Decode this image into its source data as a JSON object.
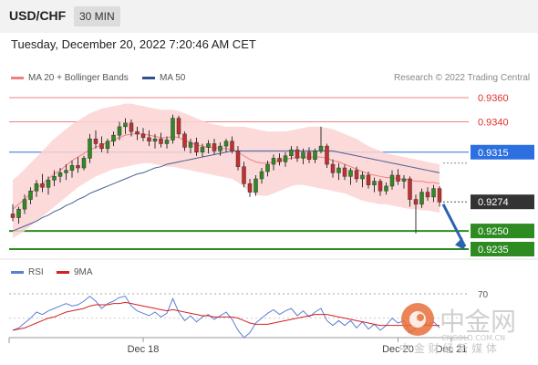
{
  "header": {
    "symbol": "USD/CHF",
    "timeframe": "30 MIN"
  },
  "timestamp": "Tuesday, December 20, 2022 7:20:46 AM CET",
  "legend": [
    {
      "label": "MA 20 + Bollinger Bands",
      "color": "#f08080"
    },
    {
      "label": "MA 50",
      "color": "#2f4f8f"
    }
  ],
  "source": "Research © 2022 Trading Central",
  "rsi_legend": [
    {
      "label": "RSI",
      "color": "#5b7fd6"
    },
    {
      "label": "9MA",
      "color": "#d62020"
    }
  ],
  "watermark": {
    "brand": "中金网",
    "site": "CNGOLD.COM.CN",
    "tagline": "中 金 财 经 新 媒 体"
  },
  "chart_data": {
    "type": "candlestick",
    "ylim": [
      0.922,
      0.937
    ],
    "levels": [
      {
        "value": 0.936,
        "label": "0.9360",
        "kind": "resistance",
        "color": "#f08080"
      },
      {
        "value": 0.934,
        "label": "0.9340",
        "kind": "resistance",
        "color": "#f08080"
      },
      {
        "value": 0.9315,
        "label": "0.9315",
        "kind": "pivot",
        "color": "#2b6fe0"
      },
      {
        "value": 0.9274,
        "label": "0.9274",
        "kind": "last",
        "color": "#333333"
      },
      {
        "value": 0.925,
        "label": "0.9250",
        "kind": "target",
        "color": "#2e8b22"
      },
      {
        "value": 0.9235,
        "label": "0.9235",
        "kind": "target",
        "color": "#2e8b22"
      }
    ],
    "x_labels": [
      "Dec 18",
      "Dec 20",
      "Dec 21"
    ],
    "x_label_index": [
      22,
      65,
      74
    ],
    "candles": [
      [
        0.9264,
        0.9272,
        0.9258,
        0.9261
      ],
      [
        0.9261,
        0.927,
        0.9256,
        0.9268
      ],
      [
        0.9268,
        0.928,
        0.9264,
        0.9276
      ],
      [
        0.9276,
        0.9286,
        0.9272,
        0.9283
      ],
      [
        0.9283,
        0.9292,
        0.9278,
        0.9289
      ],
      [
        0.9289,
        0.9297,
        0.9282,
        0.9286
      ],
      [
        0.9286,
        0.9295,
        0.928,
        0.9292
      ],
      [
        0.9292,
        0.93,
        0.9287,
        0.9295
      ],
      [
        0.9295,
        0.9302,
        0.929,
        0.9298
      ],
      [
        0.9298,
        0.9305,
        0.9292,
        0.93
      ],
      [
        0.93,
        0.9308,
        0.9294,
        0.9304
      ],
      [
        0.9304,
        0.9311,
        0.9298,
        0.9302
      ],
      [
        0.9302,
        0.9312,
        0.93,
        0.931
      ],
      [
        0.931,
        0.933,
        0.9306,
        0.9326
      ],
      [
        0.9326,
        0.9333,
        0.9318,
        0.9322
      ],
      [
        0.9322,
        0.9328,
        0.9315,
        0.9318
      ],
      [
        0.9318,
        0.9326,
        0.9314,
        0.9324
      ],
      [
        0.9324,
        0.9332,
        0.932,
        0.9329
      ],
      [
        0.9329,
        0.934,
        0.9325,
        0.9336
      ],
      [
        0.9336,
        0.9343,
        0.933,
        0.9339
      ],
      [
        0.9339,
        0.9342,
        0.9328,
        0.9332
      ],
      [
        0.9332,
        0.9336,
        0.9325,
        0.933
      ],
      [
        0.933,
        0.9335,
        0.9324,
        0.9327
      ],
      [
        0.9327,
        0.9333,
        0.932,
        0.9324
      ],
      [
        0.9324,
        0.933,
        0.9318,
        0.9326
      ],
      [
        0.9326,
        0.9331,
        0.9319,
        0.9322
      ],
      [
        0.9322,
        0.9328,
        0.9318,
        0.9325
      ],
      [
        0.9325,
        0.9346,
        0.9322,
        0.9343
      ],
      [
        0.9343,
        0.9345,
        0.9327,
        0.933
      ],
      [
        0.933,
        0.9332,
        0.9316,
        0.9319
      ],
      [
        0.9319,
        0.9326,
        0.9314,
        0.9323
      ],
      [
        0.9323,
        0.9327,
        0.9312,
        0.9315
      ],
      [
        0.9315,
        0.9322,
        0.9311,
        0.9319
      ],
      [
        0.9319,
        0.9325,
        0.9314,
        0.9322
      ],
      [
        0.9322,
        0.9326,
        0.9313,
        0.9316
      ],
      [
        0.9316,
        0.9323,
        0.9312,
        0.932
      ],
      [
        0.932,
        0.9326,
        0.9315,
        0.9324
      ],
      [
        0.9324,
        0.9328,
        0.9314,
        0.9316
      ],
      [
        0.9316,
        0.932,
        0.93,
        0.9303
      ],
      [
        0.9303,
        0.9307,
        0.9286,
        0.9289
      ],
      [
        0.9289,
        0.9293,
        0.9278,
        0.9282
      ],
      [
        0.9282,
        0.9296,
        0.9279,
        0.9293
      ],
      [
        0.9293,
        0.9302,
        0.9289,
        0.9299
      ],
      [
        0.9299,
        0.9308,
        0.9295,
        0.9305
      ],
      [
        0.9305,
        0.9313,
        0.93,
        0.931
      ],
      [
        0.931,
        0.9314,
        0.9304,
        0.9307
      ],
      [
        0.9307,
        0.9315,
        0.9303,
        0.9312
      ],
      [
        0.9312,
        0.932,
        0.9309,
        0.9317
      ],
      [
        0.9317,
        0.932,
        0.9307,
        0.931
      ],
      [
        0.931,
        0.9318,
        0.9305,
        0.9315
      ],
      [
        0.9315,
        0.9319,
        0.9306,
        0.9309
      ],
      [
        0.9309,
        0.9318,
        0.9306,
        0.9316
      ],
      [
        0.9316,
        0.9336,
        0.9314,
        0.932
      ],
      [
        0.932,
        0.9322,
        0.9302,
        0.9305
      ],
      [
        0.9305,
        0.9309,
        0.9294,
        0.9298
      ],
      [
        0.9298,
        0.9306,
        0.9292,
        0.9302
      ],
      [
        0.9302,
        0.9305,
        0.9292,
        0.9295
      ],
      [
        0.9295,
        0.9302,
        0.9288,
        0.93
      ],
      [
        0.93,
        0.9303,
        0.929,
        0.9293
      ],
      [
        0.9293,
        0.9299,
        0.9286,
        0.9296
      ],
      [
        0.9296,
        0.9299,
        0.9285,
        0.9288
      ],
      [
        0.9288,
        0.9294,
        0.9282,
        0.9291
      ],
      [
        0.9291,
        0.9293,
        0.9279,
        0.9283
      ],
      [
        0.9283,
        0.929,
        0.928,
        0.9287
      ],
      [
        0.9287,
        0.93,
        0.9284,
        0.9296
      ],
      [
        0.9296,
        0.9301,
        0.9288,
        0.9291
      ],
      [
        0.9291,
        0.9296,
        0.9285,
        0.9293
      ],
      [
        0.9293,
        0.9295,
        0.927,
        0.9276
      ],
      [
        0.9276,
        0.928,
        0.9248,
        0.9272
      ],
      [
        0.9272,
        0.9285,
        0.9269,
        0.9282
      ],
      [
        0.9282,
        0.9286,
        0.9275,
        0.9278
      ],
      [
        0.9278,
        0.9288,
        0.9274,
        0.9285
      ],
      [
        0.9285,
        0.9287,
        0.927,
        0.9274
      ]
    ],
    "ma20": [
      0.9268,
      0.9272,
      0.9276,
      0.9281,
      0.9285,
      0.9289,
      0.9293,
      0.9297,
      0.93,
      0.9304,
      0.9308,
      0.9311,
      0.9314,
      0.9317,
      0.9319,
      0.9321,
      0.9323,
      0.9325,
      0.9327,
      0.9329,
      0.933,
      0.933,
      0.933,
      0.9329,
      0.9328,
      0.9327,
      0.9327,
      0.9328,
      0.9327,
      0.9325,
      0.9323,
      0.9321,
      0.932,
      0.9319,
      0.9319,
      0.9318,
      0.9318,
      0.9317,
      0.9315,
      0.9312,
      0.9309,
      0.9307,
      0.9306,
      0.9306,
      0.9307,
      0.9308,
      0.9309,
      0.931,
      0.9311,
      0.9311,
      0.9311,
      0.9311,
      0.9311,
      0.931,
      0.9308,
      0.9307,
      0.9305,
      0.9303,
      0.9301,
      0.9299,
      0.9297,
      0.9296,
      0.9295,
      0.9294,
      0.9294,
      0.9293,
      0.9293,
      0.9292,
      0.9291,
      0.9291,
      0.929,
      0.929,
      0.9289
    ],
    "bb_upper": [
      0.9292,
      0.9296,
      0.9301,
      0.9306,
      0.9311,
      0.9316,
      0.9321,
      0.9326,
      0.933,
      0.9334,
      0.9338,
      0.9341,
      0.9344,
      0.9347,
      0.9349,
      0.9351,
      0.9352,
      0.9353,
      0.9354,
      0.9355,
      0.9355,
      0.9354,
      0.9353,
      0.9352,
      0.9351,
      0.935,
      0.935,
      0.935,
      0.9349,
      0.9347,
      0.9345,
      0.9343,
      0.9341,
      0.9339,
      0.9338,
      0.9337,
      0.9336,
      0.9336,
      0.9336,
      0.9336,
      0.9335,
      0.9334,
      0.9333,
      0.9332,
      0.9332,
      0.9332,
      0.9332,
      0.9333,
      0.9334,
      0.9335,
      0.9336,
      0.9336,
      0.9336,
      0.9335,
      0.9334,
      0.9332,
      0.933,
      0.9328,
      0.9326,
      0.9323,
      0.932,
      0.9318,
      0.9316,
      0.9314,
      0.9313,
      0.9312,
      0.9311,
      0.931,
      0.9309,
      0.9308,
      0.9307,
      0.9306,
      0.9305
    ],
    "bb_lower": [
      0.9244,
      0.9247,
      0.925,
      0.9254,
      0.9258,
      0.9262,
      0.9266,
      0.927,
      0.9274,
      0.9278,
      0.9282,
      0.9286,
      0.9289,
      0.9292,
      0.9295,
      0.9297,
      0.9299,
      0.9301,
      0.9302,
      0.9303,
      0.9304,
      0.9305,
      0.9306,
      0.9306,
      0.9305,
      0.9304,
      0.9303,
      0.9303,
      0.9302,
      0.9301,
      0.93,
      0.9299,
      0.9298,
      0.9297,
      0.9296,
      0.9295,
      0.9294,
      0.9293,
      0.929,
      0.9286,
      0.9282,
      0.928,
      0.9279,
      0.9279,
      0.9281,
      0.9283,
      0.9285,
      0.9287,
      0.9288,
      0.9288,
      0.9287,
      0.9286,
      0.9285,
      0.9284,
      0.9283,
      0.9282,
      0.9281,
      0.9279,
      0.9277,
      0.9275,
      0.9274,
      0.9273,
      0.9272,
      0.9272,
      0.9271,
      0.927,
      0.9269,
      0.9268,
      0.9268,
      0.9267,
      0.9267,
      0.9266,
      0.9265
    ],
    "ma50": [
      0.925,
      0.9252,
      0.9254,
      0.9256,
      0.9258,
      0.9261,
      0.9263,
      0.9266,
      0.9268,
      0.9271,
      0.9273,
      0.9276,
      0.9278,
      0.9281,
      0.9283,
      0.9285,
      0.9287,
      0.9289,
      0.9291,
      0.9293,
      0.9295,
      0.9297,
      0.9298,
      0.93,
      0.9302,
      0.9303,
      0.9305,
      0.9306,
      0.9307,
      0.9308,
      0.9309,
      0.931,
      0.9311,
      0.9312,
      0.9313,
      0.9314,
      0.9315,
      0.9316,
      0.9316,
      0.9316,
      0.9316,
      0.9316,
      0.9316,
      0.9316,
      0.9316,
      0.9316,
      0.9316,
      0.9316,
      0.9316,
      0.9316,
      0.9316,
      0.9316,
      0.9316,
      0.9316,
      0.9316,
      0.9315,
      0.9314,
      0.9313,
      0.9312,
      0.9311,
      0.931,
      0.9309,
      0.9308,
      0.9307,
      0.9306,
      0.9305,
      0.9304,
      0.9303,
      0.9302,
      0.9301,
      0.93,
      0.9299,
      0.9298
    ],
    "rsi": {
      "level_label": "70",
      "level": 70,
      "ylim": [
        20,
        80
      ],
      "rsi": [
        40,
        42,
        46,
        50,
        55,
        53,
        56,
        58,
        60,
        62,
        60,
        61,
        64,
        68,
        64,
        58,
        62,
        64,
        67,
        68,
        60,
        56,
        54,
        52,
        55,
        51,
        54,
        66,
        55,
        48,
        52,
        47,
        51,
        53,
        49,
        52,
        55,
        49,
        40,
        34,
        38,
        46,
        50,
        54,
        57,
        53,
        56,
        58,
        52,
        56,
        51,
        55,
        58,
        48,
        44,
        48,
        44,
        48,
        42,
        47,
        41,
        45,
        40,
        44,
        50,
        46,
        48,
        38,
        42,
        48,
        44,
        47,
        42
      ],
      "ma9": [
        40,
        41,
        42,
        44,
        46,
        48,
        50,
        51,
        53,
        55,
        56,
        57,
        58,
        60,
        61,
        61,
        61,
        62,
        62,
        63,
        62,
        61,
        60,
        59,
        58,
        57,
        56,
        57,
        56,
        55,
        54,
        53,
        52,
        52,
        51,
        51,
        51,
        51,
        50,
        48,
        46,
        45,
        45,
        45,
        46,
        47,
        48,
        49,
        50,
        51,
        52,
        53,
        53,
        53,
        52,
        51,
        50,
        49,
        48,
        47,
        46,
        45,
        44,
        44,
        44,
        44,
        44,
        44,
        44,
        44,
        44,
        44,
        44
      ]
    }
  }
}
